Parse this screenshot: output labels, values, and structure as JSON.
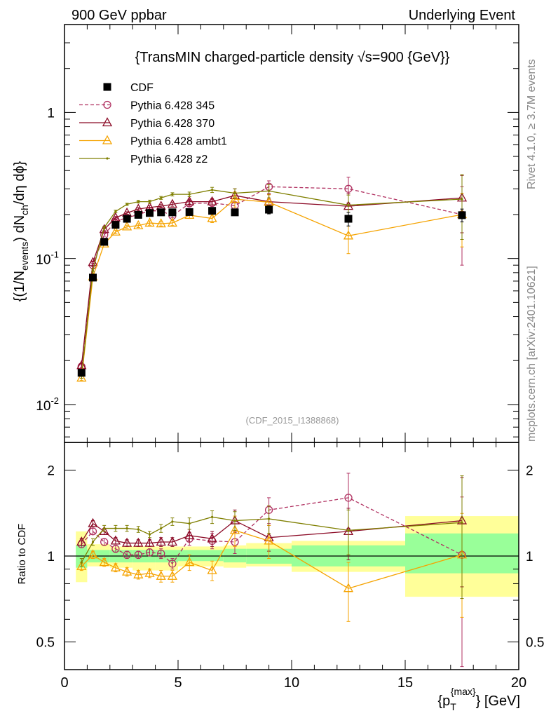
{
  "header": {
    "left": "900 GeV ppbar",
    "right": "Underlying Event"
  },
  "side_labels": {
    "rivet": "Rivet 4.1.0, ≥ 3.7M events",
    "mcplots": "mcplots.cern.ch [arXiv:2401.10621]"
  },
  "chart_data": [
    {
      "panel": "main",
      "type": "scatter",
      "title": "{TransMIN charged-particle density √s=900 {GeV}}",
      "ylabel": "{(1/N_events) dN_ch/dη dϕ}",
      "ylabel_parts": {
        "pre": "{(1/N",
        "sub1": "events",
        "mid": ") dN",
        "sub2": "ch",
        "post": "/dη dϕ}"
      },
      "yscale": "log",
      "xlim": [
        0,
        20
      ],
      "ylim": [
        0.0055,
        4.0
      ],
      "yticks": [
        {
          "value": 0.01,
          "base": "10",
          "exp": "-2"
        },
        {
          "value": 0.1,
          "base": "10",
          "exp": "-1"
        },
        {
          "value": 1,
          "label": "1"
        }
      ],
      "watermark": "(CDF_2015_I1388868)",
      "x": [
        0.75,
        1.25,
        1.75,
        2.25,
        2.75,
        3.25,
        3.75,
        4.25,
        4.75,
        5.5,
        6.5,
        7.5,
        9.0,
        12.5,
        17.5
      ],
      "series": [
        {
          "name": "CDF",
          "color": "#000000",
          "marker": "square",
          "line": "none",
          "values": [
            0.0165,
            0.074,
            0.13,
            0.17,
            0.187,
            0.199,
            0.205,
            0.207,
            0.207,
            0.208,
            0.212,
            0.207,
            0.216,
            0.187,
            0.198
          ],
          "errors": [
            0.0007,
            0.002,
            0.003,
            0.004,
            0.004,
            0.005,
            0.005,
            0.006,
            0.007,
            0.007,
            0.008,
            0.01,
            0.014,
            0.02,
            0.02
          ]
        },
        {
          "name": "Pythia 6.428 345",
          "color": "#b03060",
          "marker": "circle",
          "line": "dashed",
          "values": [
            0.0182,
            0.09,
            0.145,
            0.18,
            0.19,
            0.2,
            0.212,
            0.212,
            0.196,
            0.238,
            0.24,
            0.23,
            0.31,
            0.3,
            0.2
          ],
          "errors": [
            0.0006,
            0.002,
            0.003,
            0.004,
            0.004,
            0.005,
            0.006,
            0.006,
            0.006,
            0.01,
            0.012,
            0.015,
            0.03,
            0.06,
            0.11
          ]
        },
        {
          "name": "Pythia 6.428 370",
          "color": "#8b0a26",
          "marker": "triangle",
          "line": "solid",
          "values": [
            0.0185,
            0.094,
            0.158,
            0.19,
            0.205,
            0.218,
            0.224,
            0.228,
            0.235,
            0.245,
            0.245,
            0.27,
            0.245,
            0.228,
            0.26
          ],
          "errors": [
            0.0006,
            0.002,
            0.003,
            0.004,
            0.004,
            0.005,
            0.006,
            0.006,
            0.007,
            0.01,
            0.012,
            0.03,
            0.03,
            0.05,
            0.11
          ]
        },
        {
          "name": "Pythia 6.428 ambt1",
          "color": "#f5a300",
          "marker": "triangle",
          "line": "solid",
          "values": [
            0.0152,
            0.075,
            0.126,
            0.152,
            0.165,
            0.168,
            0.175,
            0.173,
            0.175,
            0.198,
            0.188,
            0.255,
            0.243,
            0.143,
            0.2
          ],
          "errors": [
            0.0006,
            0.002,
            0.003,
            0.004,
            0.004,
            0.005,
            0.006,
            0.006,
            0.007,
            0.01,
            0.012,
            0.03,
            0.03,
            0.035,
            0.08
          ]
        },
        {
          "name": "Pythia 6.428 z2",
          "color": "#7f7f00",
          "marker": "dot",
          "line": "solid",
          "values": [
            0.0157,
            0.083,
            0.163,
            0.21,
            0.235,
            0.245,
            0.245,
            0.26,
            0.275,
            0.275,
            0.295,
            0.28,
            0.29,
            0.232,
            0.255
          ],
          "errors": [
            0.0006,
            0.002,
            0.003,
            0.004,
            0.004,
            0.005,
            0.006,
            0.006,
            0.007,
            0.01,
            0.012,
            0.02,
            0.03,
            0.04,
            0.12
          ]
        }
      ]
    },
    {
      "panel": "ratio",
      "type": "scatter",
      "ylabel": "Ratio to CDF",
      "xlabel": "{p_T^{max}} [GeV]",
      "xlabel_parts": {
        "pre": "{p",
        "sub": "T",
        "sup": "{max}",
        "post": "} [GeV]"
      },
      "yscale": "log",
      "xlim": [
        0,
        20
      ],
      "ylim": [
        0.4,
        2.5
      ],
      "xticks": [
        0,
        5,
        10,
        15,
        20
      ],
      "xtick_labels": [
        "0",
        "5",
        "10",
        "15",
        "20"
      ],
      "yticks": [
        0.5,
        1,
        2
      ],
      "ytick_labels": [
        "0.5",
        "1",
        "2"
      ],
      "uncertainty_bands": [
        {
          "xlo": 0.5,
          "xhi": 1.0,
          "inner": [
            0.91,
            1.09
          ],
          "outer": [
            0.81,
            1.22
          ]
        },
        {
          "xlo": 1.0,
          "xhi": 2.0,
          "inner": [
            0.95,
            1.05
          ],
          "outer": [
            0.92,
            1.1
          ]
        },
        {
          "xlo": 2.0,
          "xhi": 3.0,
          "inner": [
            0.95,
            1.05
          ],
          "outer": [
            0.91,
            1.08
          ]
        },
        {
          "xlo": 3.0,
          "xhi": 4.0,
          "inner": [
            0.95,
            1.05
          ],
          "outer": [
            0.89,
            1.08
          ]
        },
        {
          "xlo": 4.0,
          "xhi": 5.0,
          "inner": [
            0.95,
            1.05
          ],
          "outer": [
            0.89,
            1.08
          ]
        },
        {
          "xlo": 5.0,
          "xhi": 7.0,
          "inner": [
            0.96,
            1.05
          ],
          "outer": [
            0.92,
            1.08
          ]
        },
        {
          "xlo": 7.0,
          "xhi": 8.0,
          "inner": [
            0.95,
            1.06
          ],
          "outer": [
            0.91,
            1.09
          ]
        },
        {
          "xlo": 8.0,
          "xhi": 10.0,
          "inner": [
            0.94,
            1.06
          ],
          "outer": [
            0.92,
            1.11
          ]
        },
        {
          "xlo": 10.0,
          "xhi": 15.0,
          "inner": [
            0.92,
            1.09
          ],
          "outer": [
            0.88,
            1.13
          ]
        },
        {
          "xlo": 15.0,
          "xhi": 20.0,
          "inner": [
            0.87,
            1.2
          ],
          "outer": [
            0.72,
            1.38
          ]
        }
      ],
      "x": [
        0.75,
        1.25,
        1.75,
        2.25,
        2.75,
        3.25,
        3.75,
        4.25,
        4.75,
        5.5,
        6.5,
        7.5,
        9.0,
        12.5,
        17.5
      ],
      "series": [
        {
          "name": "Pythia 6.428 345",
          "color": "#b03060",
          "marker": "circle",
          "line": "dashed",
          "values": [
            1.1,
            1.22,
            1.12,
            1.06,
            1.01,
            1.01,
            1.03,
            1.02,
            0.94,
            1.15,
            1.13,
            1.12,
            1.45,
            1.6,
            1.01
          ],
          "errors": [
            0.03,
            0.03,
            0.03,
            0.03,
            0.03,
            0.03,
            0.03,
            0.04,
            0.04,
            0.06,
            0.07,
            0.1,
            0.15,
            0.35,
            0.6
          ]
        },
        {
          "name": "Pythia 6.428 370",
          "color": "#8b0a26",
          "marker": "triangle",
          "line": "solid",
          "values": [
            1.12,
            1.3,
            1.22,
            1.13,
            1.11,
            1.11,
            1.11,
            1.12,
            1.12,
            1.18,
            1.15,
            1.33,
            1.16,
            1.22,
            1.33
          ],
          "errors": [
            0.03,
            0.03,
            0.03,
            0.03,
            0.03,
            0.03,
            0.03,
            0.04,
            0.04,
            0.06,
            0.07,
            0.12,
            0.12,
            0.25,
            0.55
          ]
        },
        {
          "name": "Pythia 6.428 ambt1",
          "color": "#f5a300",
          "marker": "triangle",
          "line": "solid",
          "values": [
            0.92,
            1.01,
            0.95,
            0.91,
            0.88,
            0.86,
            0.87,
            0.85,
            0.85,
            0.95,
            0.89,
            1.23,
            1.13,
            0.77,
            1.01
          ],
          "errors": [
            0.03,
            0.03,
            0.03,
            0.03,
            0.03,
            0.03,
            0.03,
            0.04,
            0.04,
            0.06,
            0.07,
            0.15,
            0.15,
            0.18,
            0.4
          ]
        },
        {
          "name": "Pythia 6.428 z2",
          "color": "#7f7f00",
          "marker": "dot",
          "line": "solid",
          "values": [
            0.95,
            1.12,
            1.25,
            1.25,
            1.25,
            1.24,
            1.19,
            1.25,
            1.32,
            1.3,
            1.37,
            1.33,
            1.35,
            1.23,
            1.31
          ],
          "errors": [
            0.03,
            0.03,
            0.03,
            0.03,
            0.03,
            0.03,
            0.03,
            0.04,
            0.04,
            0.06,
            0.07,
            0.1,
            0.15,
            0.22,
            0.6
          ]
        }
      ]
    }
  ]
}
